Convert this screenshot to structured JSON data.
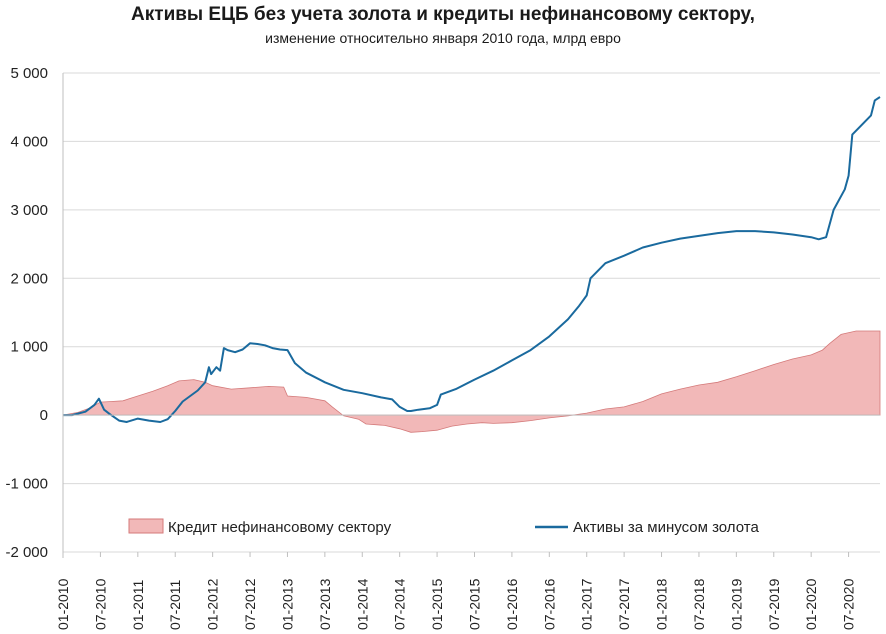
{
  "chart_data": {
    "type": "area+line",
    "title": "Активы ЕЦБ без учета золота и кредиты нефинансовому сектору,",
    "subtitle": "изменение относительно января 2010 года, млрд евро",
    "xlabel": "",
    "ylabel": "",
    "ylim": [
      -2000,
      5000
    ],
    "yticks": [
      -2000,
      -1000,
      0,
      1000,
      2000,
      3000,
      4000,
      5000
    ],
    "ytick_labels": [
      "-2 000",
      "-1 000",
      "0",
      "1 000",
      "2 000",
      "3 000",
      "4 000",
      "5 000"
    ],
    "xlim": [
      2010.0,
      2020.92
    ],
    "xticks": [
      2010.0,
      2010.5,
      2011.0,
      2011.5,
      2012.0,
      2012.5,
      2013.0,
      2013.5,
      2014.0,
      2014.5,
      2015.0,
      2015.5,
      2016.0,
      2016.5,
      2017.0,
      2017.5,
      2018.0,
      2018.5,
      2019.0,
      2019.5,
      2020.0,
      2020.5
    ],
    "xtick_labels": [
      "01-2010",
      "07-2010",
      "01-2011",
      "07-2011",
      "01-2012",
      "07-2012",
      "01-2013",
      "07-2013",
      "01-2014",
      "07-2014",
      "01-2015",
      "07-2015",
      "01-2016",
      "07-2016",
      "01-2017",
      "07-2017",
      "01-2018",
      "07-2018",
      "01-2019",
      "07-2019",
      "01-2020",
      "07-2020"
    ],
    "grid": "horizontal",
    "legend_position": "bottom",
    "series": [
      {
        "name": "Кредит нефинансовому сектору",
        "kind": "area",
        "color": "#f2b8b8",
        "edge_color": "#d47a7a",
        "x": [
          2010.0,
          2010.2,
          2010.35,
          2010.5,
          2010.65,
          2010.8,
          2011.0,
          2011.2,
          2011.4,
          2011.55,
          2011.75,
          2011.9,
          2012.0,
          2012.25,
          2012.5,
          2012.75,
          2012.95,
          2013.0,
          2013.25,
          2013.5,
          2013.6,
          2013.75,
          2013.95,
          2014.05,
          2014.3,
          2014.5,
          2014.65,
          2014.8,
          2015.0,
          2015.2,
          2015.4,
          2015.6,
          2015.75,
          2016.0,
          2016.25,
          2016.5,
          2016.75,
          2017.0,
          2017.25,
          2017.5,
          2017.75,
          2018.0,
          2018.25,
          2018.5,
          2018.75,
          2019.0,
          2019.25,
          2019.5,
          2019.75,
          2020.0,
          2020.15,
          2020.25,
          2020.4,
          2020.6,
          2020.92
        ],
        "values": [
          0,
          40,
          100,
          190,
          200,
          210,
          280,
          350,
          430,
          500,
          520,
          480,
          430,
          380,
          400,
          420,
          410,
          280,
          260,
          210,
          120,
          -10,
          -60,
          -130,
          -150,
          -200,
          -250,
          -240,
          -220,
          -160,
          -130,
          -110,
          -120,
          -110,
          -80,
          -40,
          -10,
          30,
          90,
          120,
          200,
          310,
          380,
          440,
          480,
          560,
          650,
          740,
          820,
          880,
          950,
          1050,
          1180,
          1230,
          1230
        ]
      },
      {
        "name": "Активы за минусом золота",
        "kind": "line",
        "color": "#1a6a9e",
        "x": [
          2010.0,
          2010.12,
          2010.3,
          2010.42,
          2010.48,
          2010.55,
          2010.62,
          2010.75,
          2010.85,
          2011.0,
          2011.15,
          2011.3,
          2011.4,
          2011.5,
          2011.6,
          2011.7,
          2011.8,
          2011.9,
          2011.95,
          2011.98,
          2012.05,
          2012.1,
          2012.15,
          2012.2,
          2012.3,
          2012.4,
          2012.5,
          2012.6,
          2012.7,
          2012.8,
          2012.9,
          2013.0,
          2013.1,
          2013.25,
          2013.5,
          2013.75,
          2014.0,
          2014.25,
          2014.4,
          2014.5,
          2014.6,
          2014.65,
          2014.75,
          2014.9,
          2015.0,
          2015.05,
          2015.25,
          2015.5,
          2015.75,
          2016.0,
          2016.25,
          2016.5,
          2016.75,
          2016.9,
          2017.0,
          2017.05,
          2017.25,
          2017.5,
          2017.75,
          2018.0,
          2018.25,
          2018.5,
          2018.75,
          2019.0,
          2019.25,
          2019.5,
          2019.75,
          2020.0,
          2020.1,
          2020.2,
          2020.3,
          2020.45,
          2020.5,
          2020.55,
          2020.8,
          2020.85,
          2020.92
        ],
        "values": [
          0,
          0,
          50,
          150,
          240,
          80,
          20,
          -80,
          -100,
          -50,
          -80,
          -100,
          -60,
          60,
          200,
          280,
          360,
          480,
          700,
          600,
          700,
          650,
          980,
          950,
          920,
          960,
          1050,
          1040,
          1020,
          980,
          960,
          950,
          760,
          620,
          480,
          370,
          320,
          260,
          230,
          120,
          60,
          60,
          80,
          100,
          150,
          300,
          380,
          520,
          650,
          800,
          950,
          1150,
          1400,
          1600,
          1750,
          2000,
          2220,
          2330,
          2450,
          2520,
          2580,
          2620,
          2660,
          2690,
          2690,
          2670,
          2640,
          2600,
          2570,
          2600,
          3000,
          3300,
          3500,
          4100,
          4380,
          4600,
          4650
        ]
      }
    ]
  },
  "legend": {
    "area_label": "Кредит нефинансовому сектору",
    "line_label": "Активы за минусом золота"
  },
  "colors": {
    "line": "#1a6a9e",
    "area_fill": "#f2b8b8",
    "area_edge": "#d47a7a",
    "grid": "#d9d9d9"
  }
}
